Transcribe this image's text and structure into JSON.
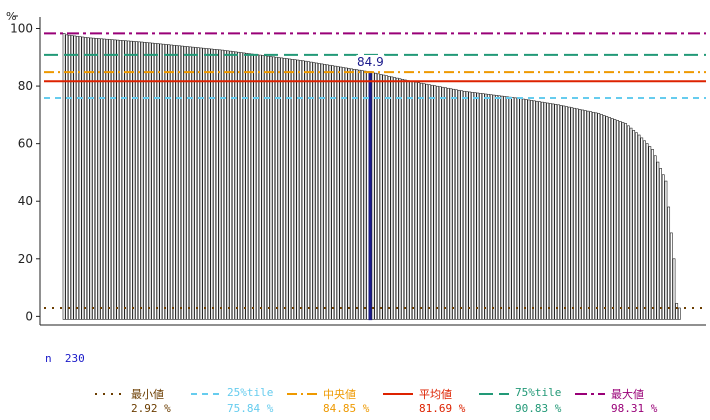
{
  "chart_data": {
    "type": "bar",
    "unit_label": "%",
    "n_label": "n",
    "n_value": "230",
    "ylim": [
      -3,
      104
    ],
    "yticks": [
      0,
      20,
      40,
      60,
      80,
      100
    ],
    "n": 230,
    "highlight": {
      "label": "84.9",
      "value": 84.9,
      "rank": 115,
      "color": "#1a1a8c"
    },
    "bar_color": "#ffffff",
    "bar_edge_color": "#222222",
    "profile": {
      "ranks": [
        1,
        2,
        10,
        30,
        60,
        90,
        115,
        130,
        150,
        170,
        185,
        200,
        210,
        215,
        220,
        225,
        228,
        229,
        230
      ],
      "values": [
        98.31,
        97.8,
        96.8,
        95.3,
        92.5,
        88.8,
        84.9,
        81.7,
        78.2,
        75.8,
        73.5,
        70.5,
        67.0,
        63.0,
        58.0,
        47.0,
        20.0,
        4.5,
        2.92
      ]
    },
    "reference_lines": [
      {
        "key": "min",
        "label": "最小値",
        "value": 2.92,
        "value_text": "2.92 %",
        "color": "#6b3d00",
        "dash": "2,6",
        "width": 2.0
      },
      {
        "key": "q1",
        "label": "25%tile",
        "value": 75.84,
        "value_text": "75.84 %",
        "color": "#66ccee",
        "dash": "6,5",
        "width": 2.0
      },
      {
        "key": "med",
        "label": "中央値",
        "value": 84.85,
        "value_text": "84.85 %",
        "color": "#ee9900",
        "dash": "10,4,2,4",
        "width": 2.0
      },
      {
        "key": "mean",
        "label": "平均値",
        "value": 81.69,
        "value_text": "81.69 %",
        "color": "#dd2200",
        "dash": "",
        "width": 2.0
      },
      {
        "key": "q3",
        "label": "75%tile",
        "value": 90.83,
        "value_text": "90.83 %",
        "color": "#229977",
        "dash": "14,6",
        "width": 2.0
      },
      {
        "key": "max",
        "label": "最大値",
        "value": 98.31,
        "value_text": "98.31 %",
        "color": "#990077",
        "dash": "12,4,3,4",
        "width": 2.0
      }
    ]
  }
}
